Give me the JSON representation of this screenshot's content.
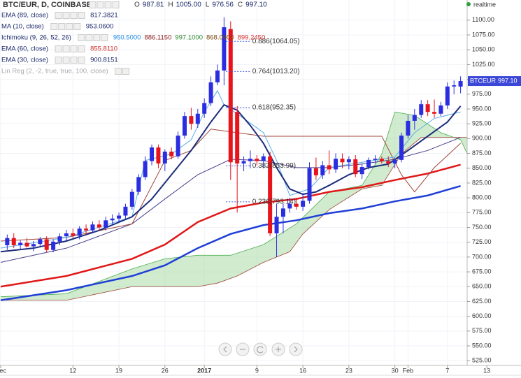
{
  "chart_data": {
    "type": "candlestick",
    "header": {
      "title": "BTC/EUR, D, COINBASE",
      "ohlc": [
        {
          "key": "O",
          "value": "987.81"
        },
        {
          "key": "H",
          "value": "1005.00"
        },
        {
          "key": "L",
          "value": "976.56"
        },
        {
          "key": "C",
          "value": "997.10"
        }
      ]
    },
    "status": "realtime",
    "legend": [
      {
        "name": "EMA (89, close)",
        "values": [
          {
            "text": "817.3821",
            "color": "#1d2a6b"
          }
        ]
      },
      {
        "name": "MA (10, close)",
        "values": [
          {
            "text": "953.0600",
            "color": "#1d2a6b"
          }
        ]
      },
      {
        "name": "Ichimoku (9, 26, 52, 26)",
        "values": [
          {
            "text": "950.5000",
            "color": "#1e88e5"
          },
          {
            "text": "886.1150",
            "color": "#8b1a1a"
          },
          {
            "text": "997.1000",
            "color": "#2e8b2e"
          },
          {
            "text": "868.0900",
            "color": "#7a4a10"
          },
          {
            "text": "899.2450",
            "color": "#d32f2f"
          }
        ]
      },
      {
        "name": "EMA (60, close)",
        "values": [
          {
            "text": "855.8110",
            "color": "#d32f2f"
          }
        ]
      },
      {
        "name": "EMA (30, close)",
        "values": [
          {
            "text": "900.8151",
            "color": "#1d2a6b"
          }
        ]
      },
      {
        "name": "Lin Reg (2, -2, true, true, 100, close)",
        "values": []
      }
    ],
    "up_color": "#2a2ee0",
    "down_color": "#e8131b",
    "x": [
      1,
      2,
      3,
      4,
      5,
      6,
      7,
      8,
      9,
      10,
      11,
      12,
      13,
      14,
      15,
      16,
      17,
      18,
      19,
      20,
      21,
      22,
      23,
      24,
      25,
      26,
      27,
      28,
      29,
      30,
      31,
      32,
      33,
      34,
      35,
      36,
      37,
      38,
      39,
      40,
      41,
      42,
      43,
      44,
      45,
      46,
      47,
      48,
      49,
      50,
      51,
      52,
      53,
      54,
      55,
      56,
      57,
      58,
      59,
      60,
      61,
      62,
      63,
      64,
      65,
      66,
      67,
      68,
      69,
      70
    ],
    "open": [
      720,
      732,
      720,
      724,
      718,
      722,
      730,
      712,
      726,
      735,
      740,
      736,
      748,
      745,
      755,
      750,
      762,
      765,
      770,
      785,
      810,
      835,
      862,
      885,
      858,
      878,
      870,
      905,
      938,
      925,
      942,
      960,
      995,
      1015,
      1085,
      945,
      858,
      862,
      866,
      862,
      870,
      740,
      768,
      782,
      790,
      785,
      795,
      850,
      838,
      855,
      848,
      866,
      860,
      865,
      840,
      852,
      864,
      866,
      862,
      858,
      864,
      905,
      930,
      940,
      958,
      945,
      942,
      956,
      988,
      987.81
    ],
    "high": [
      738,
      740,
      728,
      732,
      727,
      734,
      735,
      730,
      740,
      746,
      748,
      752,
      755,
      760,
      762,
      768,
      772,
      775,
      790,
      815,
      840,
      870,
      890,
      890,
      882,
      885,
      912,
      945,
      952,
      950,
      968,
      1005,
      1025,
      1105,
      1098,
      955,
      870,
      880,
      872,
      875,
      878,
      790,
      790,
      800,
      800,
      808,
      860,
      868,
      862,
      880,
      875,
      875,
      870,
      872,
      858,
      868,
      872,
      870,
      870,
      868,
      910,
      940,
      950,
      965,
      965,
      966,
      962,
      995,
      998,
      1005
    ],
    "low": [
      712,
      715,
      712,
      716,
      710,
      718,
      708,
      708,
      720,
      728,
      732,
      730,
      738,
      740,
      745,
      745,
      755,
      758,
      765,
      780,
      805,
      830,
      855,
      850,
      845,
      865,
      866,
      900,
      915,
      918,
      935,
      955,
      990,
      990,
      830,
      775,
      845,
      850,
      855,
      850,
      735,
      700,
      740,
      775,
      780,
      778,
      790,
      830,
      832,
      840,
      842,
      850,
      848,
      835,
      832,
      848,
      858,
      858,
      852,
      850,
      860,
      900,
      915,
      935,
      938,
      935,
      938,
      950,
      975,
      976.56
    ],
    "close": [
      732,
      720,
      724,
      718,
      722,
      730,
      712,
      726,
      735,
      740,
      736,
      748,
      745,
      755,
      750,
      762,
      765,
      770,
      785,
      810,
      835,
      862,
      885,
      858,
      878,
      870,
      905,
      938,
      925,
      942,
      960,
      995,
      1015,
      1088,
      860,
      858,
      862,
      866,
      862,
      870,
      740,
      768,
      782,
      790,
      785,
      795,
      850,
      838,
      855,
      848,
      866,
      860,
      865,
      840,
      852,
      864,
      866,
      862,
      858,
      864,
      905,
      930,
      940,
      958,
      945,
      942,
      956,
      988,
      990,
      997.1
    ],
    "indicators": [
      {
        "color": "#1f3fd6",
        "width": 2.5,
        "x": [
          0,
          10,
          20,
          25,
          30,
          35,
          40,
          45,
          50,
          55,
          60,
          65,
          70
        ],
        "values": [
          627,
          644,
          668,
          686,
          715,
          739,
          754,
          762,
          774,
          782,
          794,
          804,
          820
        ]
      },
      {
        "color": "#e01818",
        "width": 2.5,
        "x": [
          0,
          10,
          20,
          25,
          30,
          35,
          40,
          45,
          50,
          55,
          60,
          65,
          70
        ],
        "values": [
          650,
          668,
          697,
          721,
          759,
          782,
          792,
          798,
          810,
          818,
          830,
          841,
          856
        ]
      },
      {
        "color": "#4a3f8a",
        "width": 1,
        "x": [
          0,
          10,
          20,
          25,
          30,
          35,
          40,
          45,
          50,
          55,
          60,
          65,
          70
        ],
        "values": [
          691,
          715,
          756,
          798,
          839,
          865,
          863,
          851,
          851,
          857,
          865,
          880,
          902
        ]
      },
      {
        "color": "#a0453a",
        "width": 1,
        "x": [
          0,
          10,
          20,
          25,
          29,
          32,
          40,
          45,
          55,
          58,
          61,
          63,
          66,
          70
        ],
        "values": [
          727,
          733,
          756,
          863,
          880,
          916,
          904,
          904,
          904,
          904,
          839,
          810,
          851,
          892
        ]
      },
      {
        "color": "#5aaee8",
        "width": 1,
        "x": [
          0,
          10,
          20,
          22,
          26,
          29,
          31,
          33,
          34,
          37,
          40,
          42,
          44,
          47,
          50,
          55,
          60,
          63,
          66,
          70
        ],
        "values": [
          715,
          733,
          768,
          863,
          874,
          898,
          945,
          981,
          957,
          934,
          910,
          863,
          804,
          815,
          851,
          860,
          869,
          910,
          934,
          945
        ]
      },
      {
        "color": "#1c2d7a",
        "width": 2,
        "x": [
          0,
          5,
          10,
          15,
          20,
          23,
          26,
          29,
          32,
          34,
          36,
          38,
          40,
          42,
          44,
          46,
          48,
          50,
          53,
          56,
          59,
          62,
          65,
          68,
          70
        ],
        "values": [
          709,
          715,
          727,
          745,
          768,
          798,
          839,
          880,
          928,
          957,
          948,
          922,
          892,
          851,
          815,
          806,
          810,
          821,
          839,
          851,
          857,
          880,
          904,
          928,
          955
        ]
      }
    ],
    "cloud": {
      "color": "#a9dba6",
      "span_a": {
        "color": "#4caf50",
        "x": [
          0,
          10,
          20,
          25,
          30,
          35,
          40,
          45,
          50,
          55,
          58,
          60,
          63,
          67,
          70,
          72,
          75
        ],
        "values": [
          633,
          638,
          680,
          697,
          703,
          703,
          721,
          756,
          810,
          821,
          874,
          945,
          939,
          910,
          898,
          851,
          845
        ]
      },
      "span_b": {
        "color": "#a0453a",
        "x": [
          75,
          70,
          64,
          61,
          58,
          55,
          50,
          46,
          44,
          40,
          36,
          33,
          30,
          25,
          20,
          10,
          0
        ],
        "values": [
          902,
          902,
          902,
          874,
          821,
          815,
          780,
          739,
          709,
          691,
          668,
          656,
          650,
          650,
          650,
          627,
          627
        ]
      }
    },
    "fib": [
      {
        "label": "0.886(1064.05)",
        "value": 1064.05
      },
      {
        "label": "0.764(1013.20)",
        "value": 1013.2
      },
      {
        "label": "0.618(952.35)",
        "value": 952.35
      },
      {
        "label": "0.382(853.99)",
        "value": 853.99
      },
      {
        "label": "0.236(793.14)",
        "value": 793.14
      }
    ],
    "price_tag": {
      "symbol": "BTCEUR",
      "label": "997.10",
      "value": 997.1
    },
    "xlim": [
      -0.1,
      71
    ],
    "xticks": [
      {
        "value": 0,
        "label": "Dec"
      },
      {
        "value": 11,
        "label": "12"
      },
      {
        "value": 18,
        "label": "19"
      },
      {
        "value": 25,
        "label": "26"
      },
      {
        "value": 31,
        "label": "2017"
      },
      {
        "value": 39,
        "label": "9"
      },
      {
        "value": 46,
        "label": "16"
      },
      {
        "value": 53,
        "label": "23"
      },
      {
        "value": 60,
        "label": "30"
      },
      {
        "value": 62,
        "label": "Feb"
      },
      {
        "value": 68,
        "label": "7"
      },
      {
        "value": 74,
        "label": "13"
      }
    ],
    "ylim": [
      517,
      1134
    ],
    "yticks": [
      {
        "value": 525,
        "label": "525.00"
      },
      {
        "value": 550,
        "label": "550.00"
      },
      {
        "value": 575,
        "label": "575.00"
      },
      {
        "value": 600,
        "label": "600.00"
      },
      {
        "value": 625,
        "label": "625.00"
      },
      {
        "value": 650,
        "label": "650.00"
      },
      {
        "value": 675,
        "label": "675.00"
      },
      {
        "value": 700,
        "label": "700.00"
      },
      {
        "value": 725,
        "label": "725.00"
      },
      {
        "value": 750,
        "label": "750.00"
      },
      {
        "value": 775,
        "label": "775.00"
      },
      {
        "value": 800,
        "label": "800.00"
      },
      {
        "value": 825,
        "label": "825.00"
      },
      {
        "value": 850,
        "label": "850.00"
      },
      {
        "value": 875,
        "label": "875.00"
      },
      {
        "value": 900,
        "label": "900.00"
      },
      {
        "value": 925,
        "label": "925.00"
      },
      {
        "value": 950,
        "label": "950.00"
      },
      {
        "value": 975,
        "label": "975.00"
      },
      {
        "value": 1000,
        "label": "1000.00"
      },
      {
        "value": 1025,
        "label": "1025.00"
      },
      {
        "value": 1050,
        "label": "1050.00"
      },
      {
        "value": 1075,
        "label": "1075.00"
      },
      {
        "value": 1100,
        "label": "1100.00"
      }
    ]
  }
}
